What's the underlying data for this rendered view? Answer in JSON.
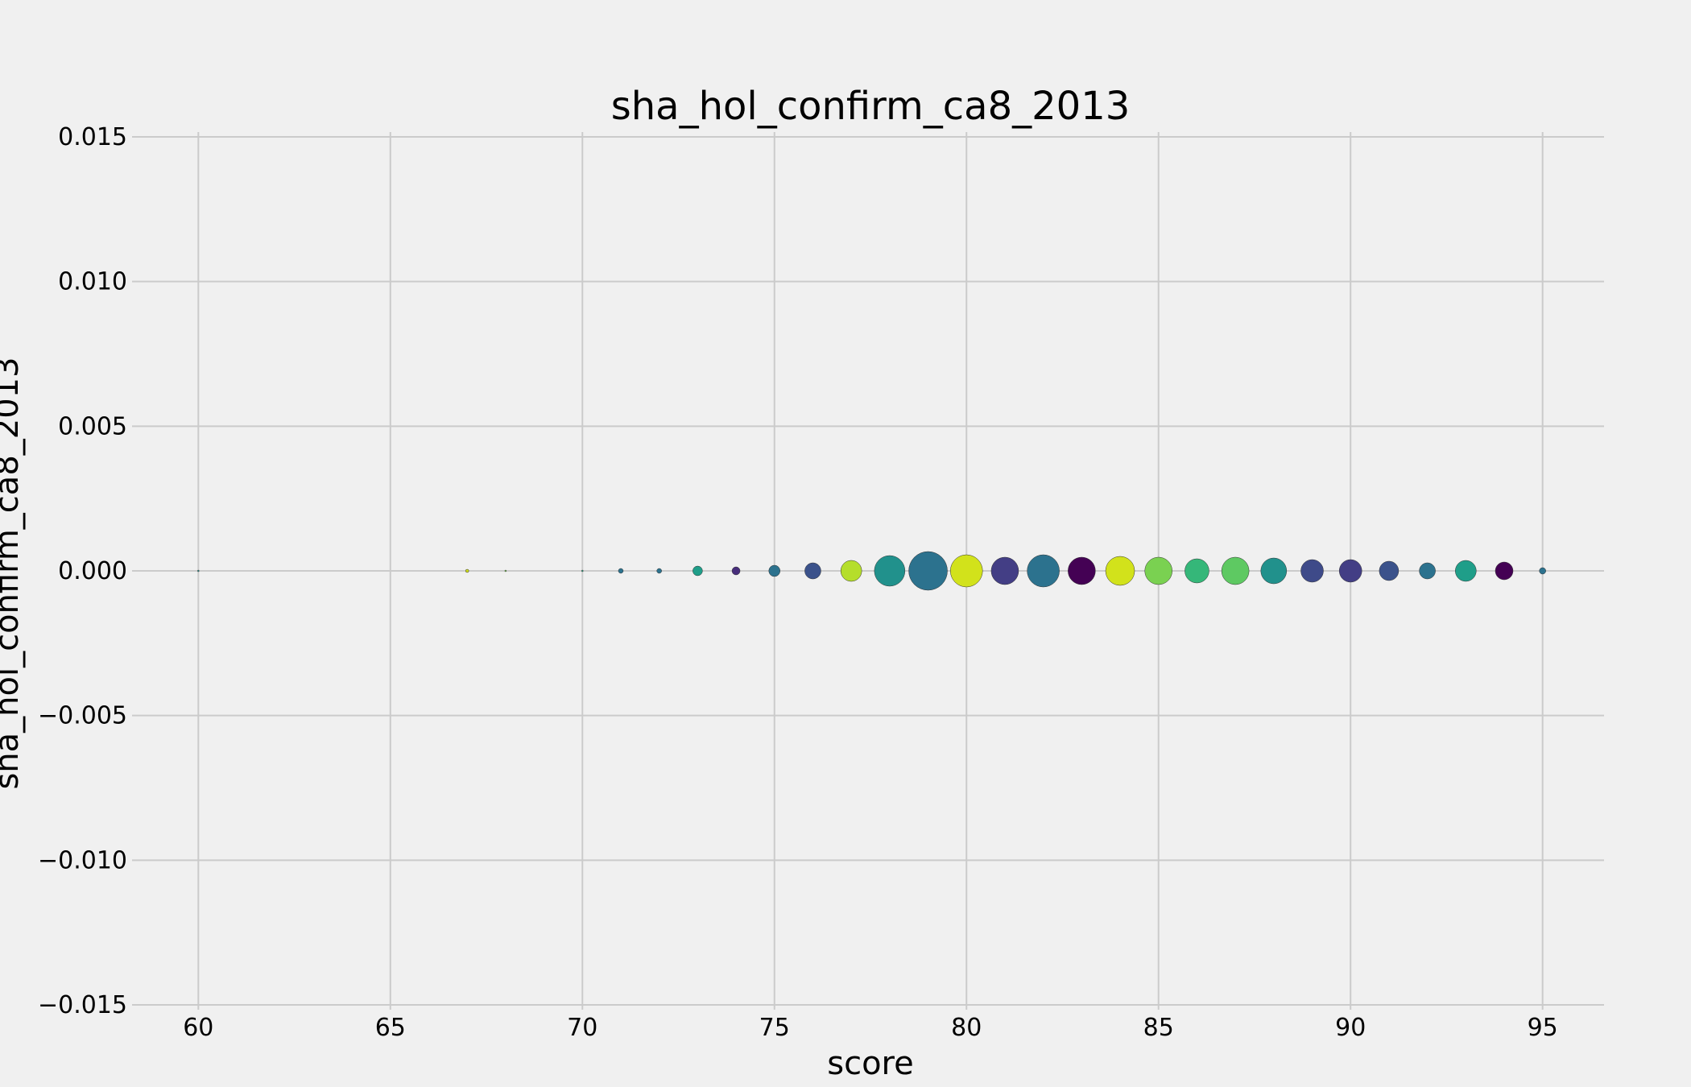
{
  "chart_data": {
    "type": "scatter",
    "title": "sha_hol_confirm_ca8_2013",
    "xlabel": "score",
    "ylabel": "sha_hol_confirm_ca8_2013",
    "xlim": [
      58.4,
      96.6
    ],
    "ylim": [
      -0.015,
      0.015
    ],
    "xticks": [
      60,
      65,
      70,
      75,
      80,
      85,
      90,
      95
    ],
    "xtick_labels": [
      "60",
      "65",
      "70",
      "75",
      "80",
      "85",
      "90",
      "95"
    ],
    "yticks": [
      0.015,
      0.01,
      0.005,
      0.0,
      -0.005,
      -0.01,
      -0.015
    ],
    "ytick_labels": [
      "0.015",
      "0.010",
      "0.005",
      "0.000",
      "−0.005",
      "−0.010",
      "−0.015"
    ],
    "grid": true,
    "points": [
      {
        "x": 60,
        "y": 0,
        "size": 1,
        "color": "#21918c"
      },
      {
        "x": 67,
        "y": 0,
        "size": 2,
        "color": "#d2e21b"
      },
      {
        "x": 68,
        "y": 0,
        "size": 1,
        "color": "#7ad151"
      },
      {
        "x": 70,
        "y": 0,
        "size": 1,
        "color": "#22a884"
      },
      {
        "x": 71,
        "y": 0,
        "size": 3,
        "color": "#2c728e"
      },
      {
        "x": 72,
        "y": 0,
        "size": 3,
        "color": "#2c728e"
      },
      {
        "x": 73,
        "y": 0,
        "size": 6,
        "color": "#1f9e89"
      },
      {
        "x": 74,
        "y": 0,
        "size": 5,
        "color": "#472d7b"
      },
      {
        "x": 75,
        "y": 0,
        "size": 7,
        "color": "#2c728e"
      },
      {
        "x": 76,
        "y": 0,
        "size": 10,
        "color": "#3b528b"
      },
      {
        "x": 77,
        "y": 0,
        "size": 13,
        "color": "#b5de2b"
      },
      {
        "x": 78,
        "y": 0,
        "size": 19,
        "color": "#21918c"
      },
      {
        "x": 79,
        "y": 0,
        "size": 24,
        "color": "#2c728e"
      },
      {
        "x": 80,
        "y": 0,
        "size": 20,
        "color": "#d2e21b"
      },
      {
        "x": 81,
        "y": 0,
        "size": 17,
        "color": "#433e85"
      },
      {
        "x": 82,
        "y": 0,
        "size": 20,
        "color": "#2c728e"
      },
      {
        "x": 83,
        "y": 0,
        "size": 17,
        "color": "#440154"
      },
      {
        "x": 84,
        "y": 0,
        "size": 18,
        "color": "#d2e21b"
      },
      {
        "x": 85,
        "y": 0,
        "size": 17,
        "color": "#7ad151"
      },
      {
        "x": 86,
        "y": 0,
        "size": 15,
        "color": "#35b779"
      },
      {
        "x": 87,
        "y": 0,
        "size": 17,
        "color": "#5ec962"
      },
      {
        "x": 88,
        "y": 0,
        "size": 16,
        "color": "#21918c"
      },
      {
        "x": 89,
        "y": 0,
        "size": 14,
        "color": "#3e4a89"
      },
      {
        "x": 90,
        "y": 0,
        "size": 14,
        "color": "#433e85"
      },
      {
        "x": 91,
        "y": 0,
        "size": 12,
        "color": "#3b528b"
      },
      {
        "x": 92,
        "y": 0,
        "size": 10,
        "color": "#2c728e"
      },
      {
        "x": 93,
        "y": 0,
        "size": 13,
        "color": "#1f9e89"
      },
      {
        "x": 94,
        "y": 0,
        "size": 11,
        "color": "#440154"
      },
      {
        "x": 95,
        "y": 0,
        "size": 4,
        "color": "#2c728e"
      }
    ]
  }
}
